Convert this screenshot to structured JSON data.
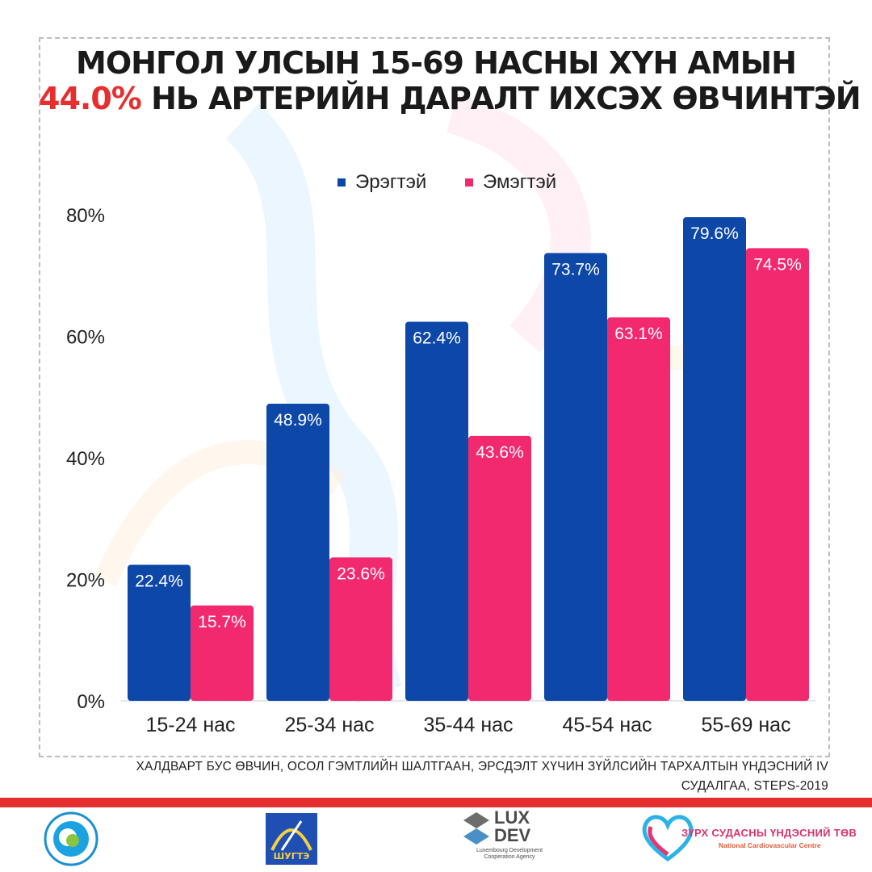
{
  "title_line1": "МОНГОЛ УЛСЫН 15-69 НАСНЫ ХҮН АМЫН",
  "title_line2_highlight": "44.0%",
  "title_line2_rest": " НЬ АРТЕРИЙН ДАРАЛТ ИХСЭХ ӨВЧИНТЭЙ",
  "colors": {
    "men": "#0d47a8",
    "women": "#f2296f",
    "highlight": "#e62e2e"
  },
  "chart_data": {
    "type": "bar",
    "categories": [
      "15-24 нас",
      "25-34 нас",
      "35-44 нас",
      "45-54 нас",
      "55-69 нас"
    ],
    "series": [
      {
        "name": "Эрэгтэй",
        "values": [
          22.4,
          48.9,
          62.4,
          73.7,
          79.6
        ],
        "labels": [
          "22.4%",
          "48.9%",
          "62.4%",
          "73.7%",
          "79.6%"
        ]
      },
      {
        "name": "Эмэгтэй",
        "values": [
          15.7,
          23.6,
          43.6,
          63.1,
          74.5
        ],
        "labels": [
          "15.7%",
          "23.6%",
          "43.6%",
          "63.1%",
          "74.5%"
        ]
      }
    ],
    "ylim": [
      0,
      80
    ],
    "yticks": [
      0,
      20,
      40,
      60,
      80
    ],
    "ytick_labels": [
      "0%",
      "20%",
      "40%",
      "60%",
      "80%"
    ],
    "legend_position": "top-center",
    "grid": false
  },
  "source_line1": "ХАЛДВАРТ БУС ӨВЧИН, ОСОЛ ГЭМТЛИЙН ШАЛТГААН, ЭРСДЭЛТ ХҮЧИН ЗҮЙЛСИЙН ТАРХАЛТЫН  ҮНДЭСНИЙ IV",
  "source_line2": "СУДАЛГАА, STEPS-2019",
  "logos": {
    "logo2_text": "ШУГТЭ",
    "logo3_lux": "LUX",
    "logo3_dev": "DEV",
    "logo3_sub": "Luxembourg Development Cooperation Agency",
    "logo4_mn": "ЗҮРХ СУДАСНЫ ҮНДЭСНИЙ ТӨВ",
    "logo4_en": "National Cardiovascular Centre"
  }
}
